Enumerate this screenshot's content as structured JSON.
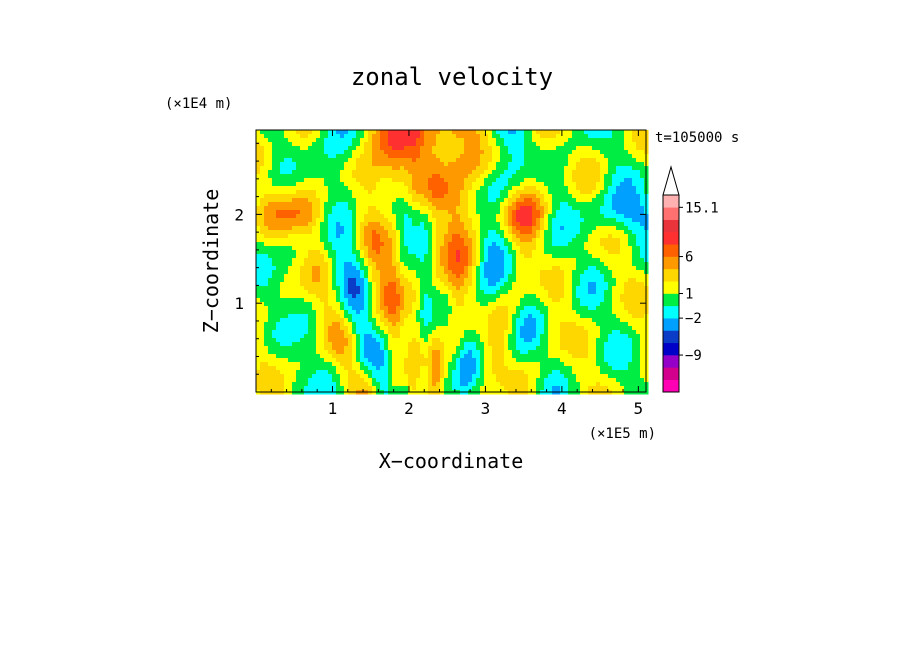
{
  "chart_data": {
    "type": "heatmap",
    "title": "zonal velocity",
    "xlabel": "X−coordinate",
    "ylabel": "Z−coordinate",
    "x_unit": "(×1E5 m)",
    "y_unit": "(×1E4 m)",
    "time_label": "t=105000 s",
    "xlim": [
      0.0,
      5.1
    ],
    "ylim": [
      0.0,
      2.95
    ],
    "x_ticks": [
      {
        "value": 1,
        "label": "1"
      },
      {
        "value": 2,
        "label": "2"
      },
      {
        "value": 3,
        "label": "3"
      },
      {
        "value": 4,
        "label": "4"
      },
      {
        "value": 5,
        "label": "5"
      }
    ],
    "y_ticks": [
      {
        "value": 1,
        "label": "1"
      },
      {
        "value": 2,
        "label": "2"
      }
    ],
    "colorbar": {
      "colors": [
        "#ff00b4",
        "#d2008c",
        "#9400c8",
        "#0000c8",
        "#0a3cc8",
        "#00a0ff",
        "#00ffff",
        "#00ee44",
        "#ffff00",
        "#ffd700",
        "#ff9900",
        "#ff6000",
        "#ff3030",
        "#e8343a",
        "#ff7070",
        "#ffb0b0"
      ],
      "tick_labels": [
        {
          "label": "15.1",
          "level": 15
        },
        {
          "label": "6",
          "level": 11
        },
        {
          "label": "1",
          "level": 8
        },
        {
          "label": "−2",
          "level": 6
        },
        {
          "label": "−9",
          "level": 3
        }
      ],
      "arrow_top": true
    },
    "grid": false
  }
}
